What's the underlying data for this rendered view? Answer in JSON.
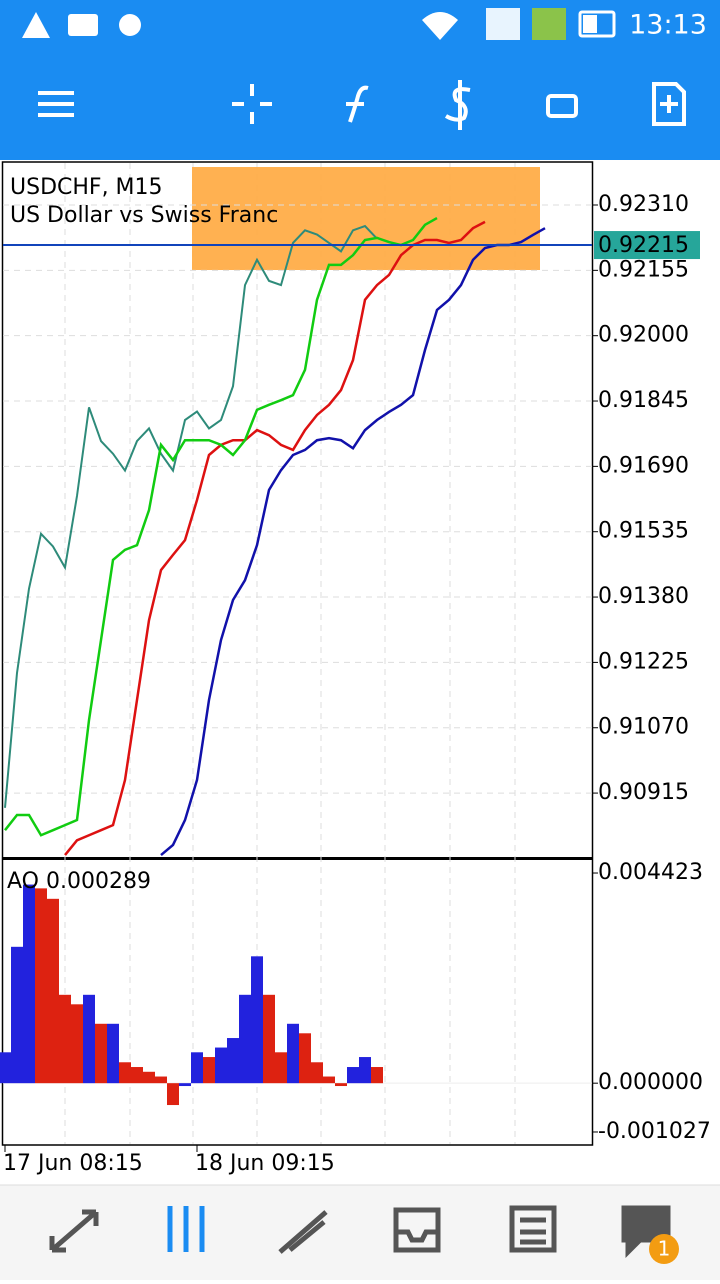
{
  "status_bar": {
    "time": "13:13"
  },
  "chart_data": [
    {
      "type": "line",
      "title": "USDCHF, M15",
      "subtitle": "US Dollar vs Swiss Franc",
      "categories": [
        "17 Jun 08:15",
        null,
        null,
        null,
        null,
        null,
        null,
        null,
        null,
        null,
        null,
        null,
        null,
        null,
        null,
        null,
        "18 Jun 09:15",
        null,
        null,
        null,
        null,
        null,
        null,
        null,
        null,
        null,
        null,
        null,
        null,
        null,
        null,
        null,
        null,
        null,
        null,
        null,
        null,
        null,
        null,
        null,
        null,
        null,
        null,
        null,
        null,
        null
      ],
      "ylim": [
        0.90761,
        0.92412
      ],
      "yticks": [
        {
          "value": 0.9231,
          "label": "0.92310"
        },
        {
          "value": 0.92155,
          "label": "0.92155"
        },
        {
          "value": 0.92,
          "label": "0.92000"
        },
        {
          "value": 0.91845,
          "label": "0.91845"
        },
        {
          "value": 0.9169,
          "label": "0.91690"
        },
        {
          "value": 0.91535,
          "label": "0.91535"
        },
        {
          "value": 0.9138,
          "label": "0.91380"
        },
        {
          "value": 0.91225,
          "label": "0.91225"
        },
        {
          "value": 0.9107,
          "label": "0.91070"
        },
        {
          "value": 0.90915,
          "label": "0.90915"
        }
      ],
      "grid": true,
      "current_price": 0.92215,
      "series": [
        {
          "color": "#2e8b7a",
          "values": [
            0.9088,
            0.912,
            0.914,
            0.9153,
            0.915,
            0.9145,
            0.9162,
            0.9183,
            0.9175,
            0.9172,
            0.9168,
            0.9175,
            0.9178,
            0.9172,
            0.9168,
            0.918,
            0.9182,
            0.9178,
            0.918,
            0.9188,
            0.9212,
            0.9218,
            0.9213,
            0.9212,
            0.9222,
            0.9225,
            0.9224,
            0.9222,
            0.922,
            0.9225,
            0.9226,
            0.9223,
            null,
            null,
            null,
            null,
            null,
            null,
            null,
            null,
            null,
            null,
            null,
            null,
            null,
            null
          ]
        },
        {
          "color": "#1111aa",
          "values": [
            null,
            null,
            null,
            null,
            null,
            null,
            null,
            null,
            null,
            null,
            null,
            null,
            null,
            0.90768,
            0.90792,
            0.90851,
            0.90946,
            0.91136,
            0.91278,
            0.91373,
            0.9142,
            0.91503,
            0.91634,
            0.91681,
            0.91717,
            0.91729,
            0.91752,
            0.91757,
            0.91752,
            0.91733,
            0.91776,
            0.918,
            0.91819,
            0.91836,
            0.91859,
            0.91966,
            0.92061,
            0.92085,
            0.9212,
            0.9218,
            0.92208,
            0.92215,
            0.92215,
            0.92222,
            0.92239,
            0.92255
          ]
        },
        {
          "color": "#dd1111",
          "values": [
            null,
            null,
            null,
            null,
            null,
            0.90768,
            0.90803,
            0.90815,
            0.90827,
            0.90839,
            0.90946,
            0.91136,
            0.91325,
            0.91444,
            0.9148,
            0.91515,
            0.9161,
            0.91717,
            0.91741,
            0.91752,
            0.91752,
            0.91776,
            0.91764,
            0.91741,
            0.91729,
            0.91776,
            0.91812,
            0.91836,
            0.91871,
            0.91942,
            0.92085,
            0.9212,
            0.92144,
            0.92191,
            0.92215,
            0.92227,
            0.92227,
            0.9222,
            0.92227,
            0.92255,
            0.9227,
            null,
            null,
            null,
            null,
            null
          ]
        },
        {
          "color": "#11cc11",
          "values": [
            0.90827,
            0.90863,
            0.90863,
            0.90815,
            0.90827,
            0.90839,
            0.90851,
            0.91088,
            0.91278,
            0.91468,
            0.91492,
            0.91503,
            0.91586,
            0.91741,
            0.91705,
            0.91752,
            0.91752,
            0.91752,
            0.91741,
            0.91717,
            0.91752,
            0.91824,
            0.91836,
            0.91847,
            0.91859,
            0.91919,
            0.92085,
            0.92168,
            0.92168,
            0.92191,
            0.92227,
            0.92232,
            0.92222,
            0.92215,
            0.92227,
            0.92263,
            0.92279,
            null,
            null,
            null,
            null,
            null,
            null,
            null,
            null,
            null
          ]
        }
      ]
    },
    {
      "type": "bar",
      "title": "AO 0.000289",
      "ylim": [
        -0.001301,
        0.004697
      ],
      "yticks": [
        0.004423,
        {
          "value": 0,
          "label": "0.000000"
        },
        -0.001027
      ],
      "up_color": "#2222dd",
      "down_color": "#dd2211",
      "values": [
        0.00065,
        0.00287,
        0.00418,
        0.0041,
        0.00388,
        0.00186,
        0.00166,
        0.00186,
        0.00125,
        0.00125,
        0.00044,
        0.00034,
        0.00024,
        0.00014,
        -0.00046,
        -6e-05,
        0.00065,
        0.00055,
        0.00075,
        0.00095,
        0.00186,
        0.00267,
        0.00186,
        0.00065,
        0.00125,
        0.00105,
        0.00044,
        0.00014,
        -6e-05,
        0.00034,
        0.00055,
        0.00034
      ]
    }
  ],
  "nav": {
    "badge": "1"
  }
}
